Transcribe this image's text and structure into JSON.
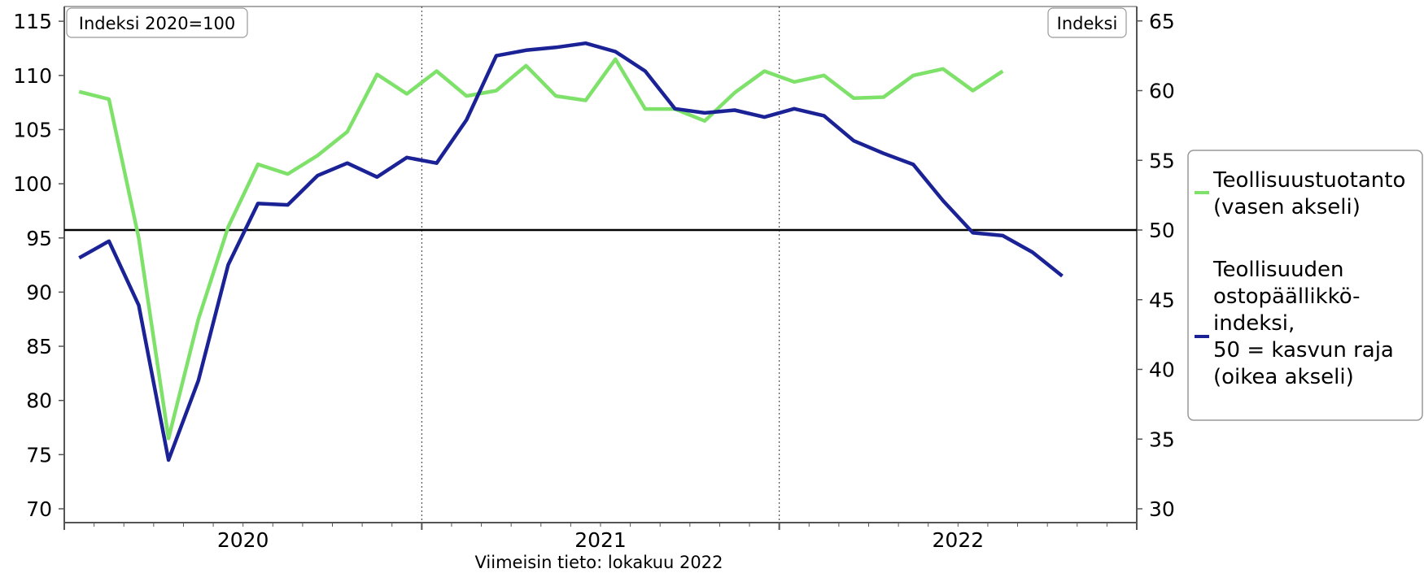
{
  "chart_data": {
    "type": "line",
    "x": [
      "2020-01",
      "2020-02",
      "2020-03",
      "2020-04",
      "2020-05",
      "2020-06",
      "2020-07",
      "2020-08",
      "2020-09",
      "2020-10",
      "2020-11",
      "2020-12",
      "2021-01",
      "2021-02",
      "2021-03",
      "2021-04",
      "2021-05",
      "2021-06",
      "2021-07",
      "2021-08",
      "2021-09",
      "2021-10",
      "2021-11",
      "2021-12",
      "2022-01",
      "2022-02",
      "2022-03",
      "2022-04",
      "2022-05",
      "2022-06",
      "2022-07",
      "2022-08",
      "2022-09",
      "2022-10"
    ],
    "x_tick_labels": [
      "2020",
      "2021",
      "2022"
    ],
    "left_axis": {
      "label": "Indeksi 2020=100",
      "range": [
        70,
        115
      ],
      "ticks": [
        70,
        75,
        80,
        85,
        90,
        95,
        100,
        105,
        110,
        115
      ]
    },
    "right_axis": {
      "label": "Indeksi",
      "range": [
        30,
        65
      ],
      "ticks": [
        30,
        35,
        40,
        45,
        50,
        55,
        60,
        65
      ]
    },
    "series": [
      {
        "name": "Teollisuustuotanto (vasen akseli)",
        "axis": "left",
        "color": "#7ee26a",
        "values": [
          108.5,
          107.8,
          95.0,
          76.5,
          87.5,
          96.0,
          101.8,
          100.9,
          102.6,
          104.8,
          110.1,
          108.3,
          110.4,
          108.1,
          108.6,
          110.9,
          108.1,
          107.7,
          111.5,
          106.9,
          106.9,
          105.8,
          108.4,
          110.4,
          109.4,
          110.0,
          107.9,
          108.0,
          110.0,
          110.6,
          108.6,
          110.4,
          null,
          null
        ]
      },
      {
        "name": "Teollisuuden ostopäällikkö-indeksi, 50 = kasvun raja (oikea akseli)",
        "axis": "right",
        "color": "#1a2296",
        "values": [
          48.0,
          49.2,
          44.6,
          33.5,
          39.2,
          47.5,
          51.9,
          51.8,
          53.9,
          54.8,
          53.8,
          55.2,
          54.8,
          57.9,
          62.5,
          62.9,
          63.1,
          63.4,
          62.8,
          61.4,
          58.7,
          58.4,
          58.6,
          58.1,
          58.7,
          58.2,
          56.4,
          55.5,
          54.7,
          52.1,
          49.8,
          49.6,
          48.4,
          46.7
        ]
      }
    ],
    "reference_line": {
      "axis": "right",
      "value": 50
    },
    "grid": false,
    "legend_position": "right",
    "legend": [
      {
        "lines": [
          "Teollisuustuotanto",
          "(vasen akseli)"
        ]
      },
      {
        "lines": [
          "Teollisuuden",
          "ostopäällikkö-",
          "indeksi,",
          "50 = kasvun raja",
          "(oikea akseli)"
        ]
      }
    ],
    "note": "Viimeisin tieto: lokakuu 2022"
  }
}
